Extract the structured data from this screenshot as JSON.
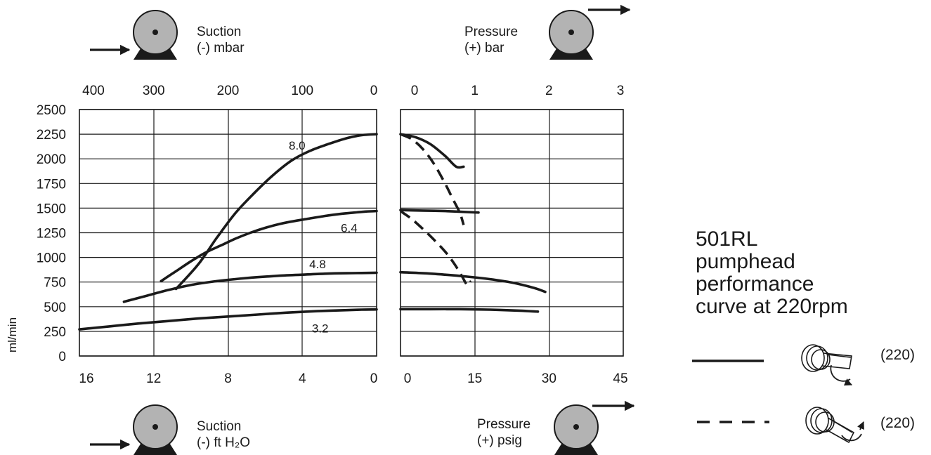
{
  "chart_data": {
    "type": "line",
    "title": "501RL pumphead performance curve at 220rpm",
    "title_lines": [
      "501RL",
      "pumphead",
      "performance",
      "curve at 220rpm"
    ],
    "ylabel": "ml/min",
    "y_ticks": [
      "2500",
      "2250",
      "2000",
      "1750",
      "1500",
      "1250",
      "1000",
      "750",
      "500",
      "250",
      "0"
    ],
    "ylim": [
      0,
      2500
    ],
    "grid": true,
    "legend_position": "right",
    "panels": [
      {
        "name": "suction",
        "top_axis": {
          "unit_label": [
            "Suction",
            "(-) mbar"
          ],
          "ticks": [
            "400",
            "300",
            "200",
            "100",
            "0"
          ],
          "range": [
            400,
            0
          ]
        },
        "bottom_axis": {
          "unit_label": [
            "Suction",
            "(-) ft H₂O"
          ],
          "ticks": [
            "16",
            "12",
            "8",
            "4",
            "0"
          ],
          "range": [
            16,
            0
          ]
        },
        "series": [
          {
            "label": "8.0",
            "style": "solid",
            "x": [
              270,
              240,
              215,
              190,
              165,
              140,
              115,
              90,
              65,
              40,
              20,
              0
            ],
            "y": [
              680,
              930,
              1200,
              1450,
              1650,
              1830,
              1980,
              2080,
              2150,
              2210,
              2240,
              2250
            ]
          },
          {
            "label": "6.4",
            "style": "solid",
            "x": [
              290,
              270,
              250,
              230,
              210,
              190,
              170,
              150,
              130,
              110,
              90,
              70,
              50,
              30,
              15,
              0
            ],
            "y": [
              760,
              860,
              960,
              1050,
              1120,
              1190,
              1250,
              1300,
              1340,
              1370,
              1395,
              1420,
              1440,
              1455,
              1465,
              1470
            ]
          },
          {
            "label": "4.8",
            "style": "solid",
            "x": [
              340,
              310,
              280,
              250,
              220,
              190,
              160,
              130,
              100,
              70,
              40,
              20,
              0
            ],
            "y": [
              550,
              610,
              670,
              720,
              755,
              780,
              800,
              815,
              825,
              835,
              840,
              842,
              845
            ]
          },
          {
            "label": "3.2",
            "style": "solid",
            "x": [
              400,
              360,
              320,
              280,
              240,
              200,
              160,
              120,
              80,
              40,
              20,
              0
            ],
            "y": [
              270,
              300,
              330,
              355,
              380,
              400,
              420,
              440,
              455,
              465,
              470,
              472
            ]
          }
        ]
      },
      {
        "name": "pressure",
        "top_axis": {
          "unit_label": [
            "Pressure",
            "(+) bar"
          ],
          "ticks": [
            "0",
            "1",
            "2",
            "3"
          ],
          "range": [
            0,
            3
          ]
        },
        "bottom_axis": {
          "unit_label": [
            "Pressure",
            "(+) psig"
          ],
          "ticks": [
            "0",
            "15",
            "30",
            "45"
          ],
          "range": [
            0,
            45
          ]
        },
        "series": [
          {
            "label": "8.0",
            "style": "solid",
            "x": [
              0,
              0.2,
              0.4,
              0.6,
              0.75,
              0.85
            ],
            "y": [
              2250,
              2220,
              2150,
              2030,
              1920,
              1920
            ]
          },
          {
            "label": "8.0",
            "style": "dashed",
            "x": [
              0,
              0.15,
              0.3,
              0.45,
              0.6,
              0.7,
              0.8,
              0.85
            ],
            "y": [
              2250,
              2200,
              2100,
              1950,
              1750,
              1600,
              1450,
              1330
            ]
          },
          {
            "label": "6.4",
            "style": "solid",
            "x": [
              0,
              0.3,
              0.6,
              0.9,
              1.05
            ],
            "y": [
              1480,
              1475,
              1470,
              1460,
              1455
            ]
          },
          {
            "label": "6.4",
            "style": "dashed",
            "x": [
              0,
              0.15,
              0.3,
              0.45,
              0.6,
              0.72,
              0.82,
              0.9,
              0.95
            ],
            "y": [
              1470,
              1390,
              1290,
              1180,
              1060,
              940,
              820,
              720,
              760
            ]
          },
          {
            "label": "4.8",
            "style": "solid",
            "x": [
              0,
              0.3,
              0.6,
              0.9,
              1.2,
              1.5,
              1.8,
              1.95
            ],
            "y": [
              850,
              840,
              825,
              805,
              780,
              745,
              690,
              650
            ]
          },
          {
            "label": "3.2",
            "style": "solid",
            "x": [
              0,
              0.4,
              0.8,
              1.2,
              1.6,
              1.85
            ],
            "y": [
              475,
              475,
              475,
              470,
              460,
              450
            ]
          }
        ]
      }
    ],
    "legend": [
      {
        "style": "solid",
        "value": "(220)"
      },
      {
        "style": "dashed",
        "value": "(220)"
      }
    ]
  }
}
